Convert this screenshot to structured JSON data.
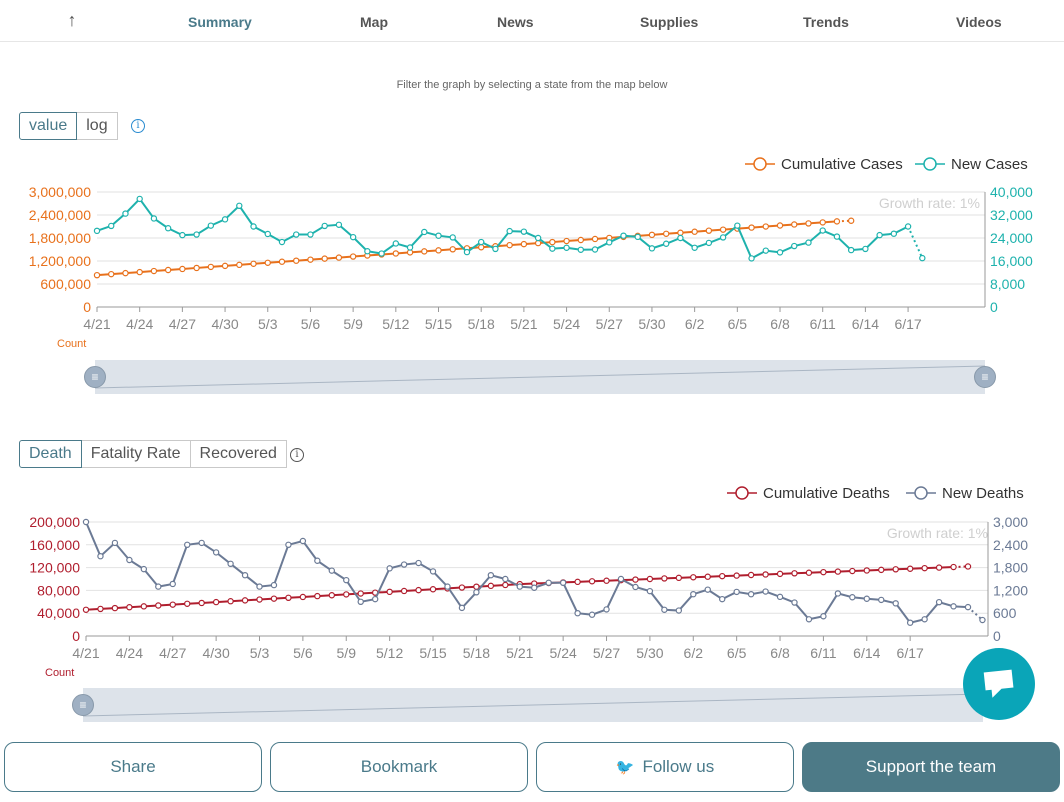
{
  "nav": {
    "items": [
      {
        "label": "Summary",
        "active": true
      },
      {
        "label": "Map",
        "active": false
      },
      {
        "label": "News",
        "active": false
      },
      {
        "label": "Supplies",
        "active": false
      },
      {
        "label": "Trends",
        "active": false
      },
      {
        "label": "Videos",
        "active": false
      }
    ],
    "up_icon": "arrow-up-icon",
    "up_glyph": "↑"
  },
  "filter_note": "Filter the graph by selecting a state from the map below",
  "cases_toggle": {
    "value_label": "value",
    "log_label": "log",
    "selected": "value",
    "info_glyph": "i"
  },
  "deaths_toggle": {
    "death_label": "Death",
    "fatality_label": "Fatality Rate",
    "recovered_label": "Recovered",
    "selected": "Death",
    "info_glyph": "i"
  },
  "colors": {
    "cumulative_cases": "#e8711c",
    "new_cases": "#1eb2ad",
    "cumulative_deaths": "#b01e2e",
    "new_deaths": "#6b7a95",
    "brand": "#4a7a8a",
    "chat": "#0aa5b8"
  },
  "chart_data": [
    {
      "type": "line",
      "x_labels": [
        "4/21",
        "4/24",
        "4/27",
        "4/30",
        "5/3",
        "5/6",
        "5/9",
        "5/12",
        "5/15",
        "5/18",
        "5/21",
        "5/24",
        "5/27",
        "5/30",
        "6/2",
        "6/5",
        "6/8",
        "6/11",
        "6/14",
        "6/17"
      ],
      "y_left_ticks": [
        "3,000,000",
        "2,400,000",
        "1,800,000",
        "1,200,000",
        "600,000",
        "0"
      ],
      "y_right_ticks": [
        "40,000",
        "32,000",
        "24,000",
        "16,000",
        "8,000",
        "0"
      ],
      "y_left_max": 3000000,
      "y_right_max": 40000,
      "left_axis_label": "Count",
      "growth_label": "Growth rate: 1%",
      "legend_position": "top-right",
      "grid": true,
      "series": [
        {
          "name": "Cumulative Cases",
          "axis": "left",
          "start_day": 0,
          "values": [
            830000,
            857000,
            884000,
            911000,
            938000,
            965000,
            992000,
            1019000,
            1046000,
            1073000,
            1100000,
            1127000,
            1154000,
            1181000,
            1208000,
            1235000,
            1262000,
            1289000,
            1316000,
            1343000,
            1370000,
            1397000,
            1424000,
            1451000,
            1478000,
            1505000,
            1532000,
            1559000,
            1586000,
            1613000,
            1640000,
            1667000,
            1694000,
            1721000,
            1748000,
            1775000,
            1802000,
            1829000,
            1856000,
            1883000,
            1910000,
            1937000,
            1964000,
            1991000,
            2018000,
            2045000,
            2072000,
            2099000,
            2126000,
            2153000,
            2180000,
            2207000,
            2234000,
            2250000
          ]
        },
        {
          "name": "New Cases",
          "axis": "right",
          "start_day": 0,
          "values": [
            26500,
            28200,
            32500,
            37600,
            30800,
            27400,
            25000,
            25200,
            28300,
            30500,
            35200,
            28000,
            25400,
            22600,
            25200,
            25200,
            28200,
            28600,
            24300,
            19400,
            18600,
            22100,
            20700,
            26100,
            24800,
            24200,
            19100,
            22600,
            20200,
            26400,
            26200,
            24000,
            20300,
            20600,
            19900,
            20000,
            22500,
            24800,
            24400,
            20400,
            22000,
            24000,
            20600,
            22300,
            24200,
            28300,
            16900,
            19600,
            19000,
            21200,
            22400,
            26600,
            24500,
            19800,
            20200,
            25000,
            25500,
            28000,
            17000
          ]
        }
      ]
    },
    {
      "type": "line",
      "x_labels": [
        "4/21",
        "4/24",
        "4/27",
        "4/30",
        "5/3",
        "5/6",
        "5/9",
        "5/12",
        "5/15",
        "5/18",
        "5/21",
        "5/24",
        "5/27",
        "5/30",
        "6/2",
        "6/5",
        "6/8",
        "6/11",
        "6/14",
        "6/17"
      ],
      "y_left_ticks": [
        "200,000",
        "160,000",
        "120,000",
        "80,000",
        "40,000",
        "0"
      ],
      "y_right_ticks": [
        "3,000",
        "2,400",
        "1,800",
        "1,200",
        "600",
        "0"
      ],
      "y_left_max": 200000,
      "y_right_max": 3000,
      "left_axis_label": "Count",
      "growth_label": "Growth rate: 1%",
      "legend_position": "top-right",
      "grid": true,
      "series": [
        {
          "name": "Cumulative Deaths",
          "axis": "left",
          "start_day": 0,
          "values": [
            46000,
            47500,
            49000,
            50500,
            52000,
            53500,
            55000,
            56500,
            58000,
            59500,
            61000,
            62500,
            64000,
            65500,
            67000,
            68500,
            70000,
            71500,
            73000,
            74500,
            76000,
            77500,
            79000,
            80500,
            82000,
            83500,
            85000,
            86500,
            88000,
            89500,
            91000,
            92000,
            93000,
            94000,
            95000,
            96000,
            97000,
            98000,
            99000,
            100000,
            101000,
            102000,
            103000,
            104000,
            105000,
            106000,
            107000,
            108000,
            109000,
            110000,
            111000,
            112000,
            113000,
            114000,
            115000,
            116000,
            117000,
            118000,
            119000,
            120000,
            121000,
            122000
          ]
        },
        {
          "name": "New Deaths",
          "axis": "right",
          "start_day": 0,
          "values": [
            3000,
            2100,
            2450,
            2000,
            1760,
            1300,
            1370,
            2400,
            2450,
            2200,
            1900,
            1600,
            1300,
            1340,
            2400,
            2500,
            1980,
            1720,
            1470,
            900,
            970,
            1780,
            1880,
            1920,
            1700,
            1300,
            740,
            1150,
            1600,
            1500,
            1300,
            1270,
            1400,
            1400,
            600,
            560,
            700,
            1500,
            1290,
            1180,
            690,
            670,
            1100,
            1220,
            970,
            1160,
            1100,
            1170,
            1030,
            880,
            440,
            520,
            1120,
            1020,
            980,
            950,
            860,
            350,
            440,
            890,
            780,
            760,
            420
          ]
        }
      ]
    }
  ],
  "bottom": {
    "share_label": "Share",
    "bookmark_label": "Bookmark",
    "follow_label": "Follow us",
    "support_label": "Support the team"
  }
}
